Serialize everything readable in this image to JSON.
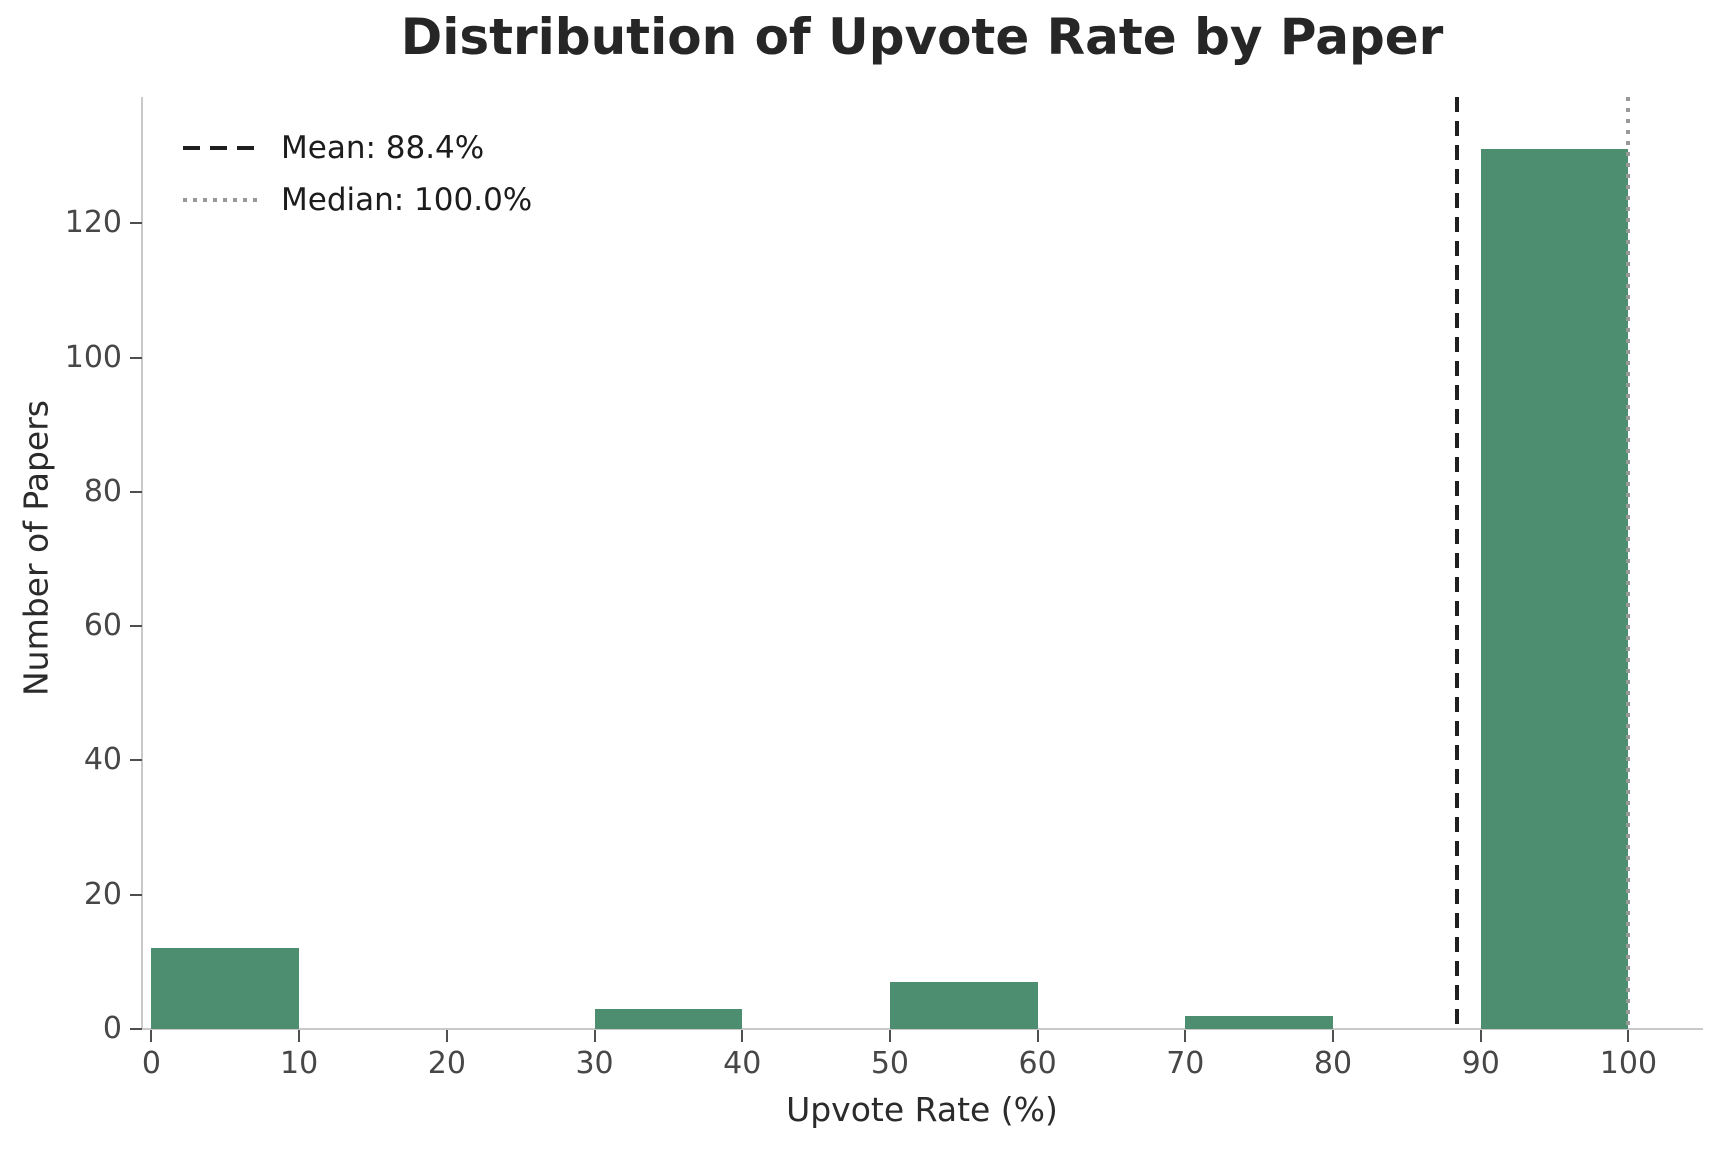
{
  "chart_data": {
    "type": "bar",
    "title": "Distribution of Upvote Rate by Paper",
    "xlabel": "Upvote Rate (%)",
    "ylabel": "Number of Papers",
    "bins": [
      {
        "x0": 0,
        "x1": 10,
        "count": 12
      },
      {
        "x0": 30,
        "x1": 40,
        "count": 3
      },
      {
        "x0": 50,
        "x1": 60,
        "count": 7
      },
      {
        "x0": 70,
        "x1": 80,
        "count": 2
      },
      {
        "x0": 90,
        "x1": 100,
        "count": 131
      }
    ],
    "x_ticks": [
      0,
      10,
      20,
      30,
      40,
      50,
      60,
      70,
      80,
      90,
      100
    ],
    "y_ticks": [
      0,
      20,
      40,
      60,
      80,
      100,
      120
    ],
    "xlim": [
      -0.64,
      105.05
    ],
    "ylim": [
      0,
      138.8
    ],
    "mean": 88.4,
    "median": 100.0,
    "legend": [
      {
        "label": "Mean: 88.4%",
        "style": "dashed",
        "color": "#1f1f1f"
      },
      {
        "label": "Median: 100.0%",
        "style": "dotted",
        "color": "#999999"
      }
    ],
    "bar_color": "#4d8e70",
    "grid": false,
    "legend_position": "upper left"
  }
}
